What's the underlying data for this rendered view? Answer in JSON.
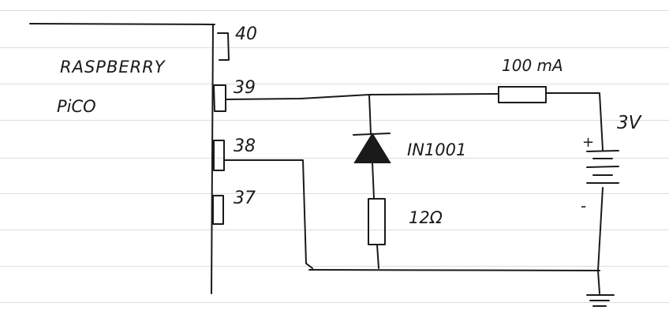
{
  "board": {
    "line1": "RASPBERRY",
    "line2": "PiCO"
  },
  "pins": {
    "p40": "40",
    "p39": "39",
    "p38": "38",
    "p37": "37"
  },
  "components": {
    "diode": "IN1001",
    "resistor_bottom": "12Ω",
    "resistor_top": "100 mA",
    "battery": "3V",
    "battery_plus": "+",
    "battery_minus": "-"
  },
  "colors": {
    "ink": "#1a1a1a",
    "rule": "#dcdcdc",
    "paper": "#ffffff"
  }
}
